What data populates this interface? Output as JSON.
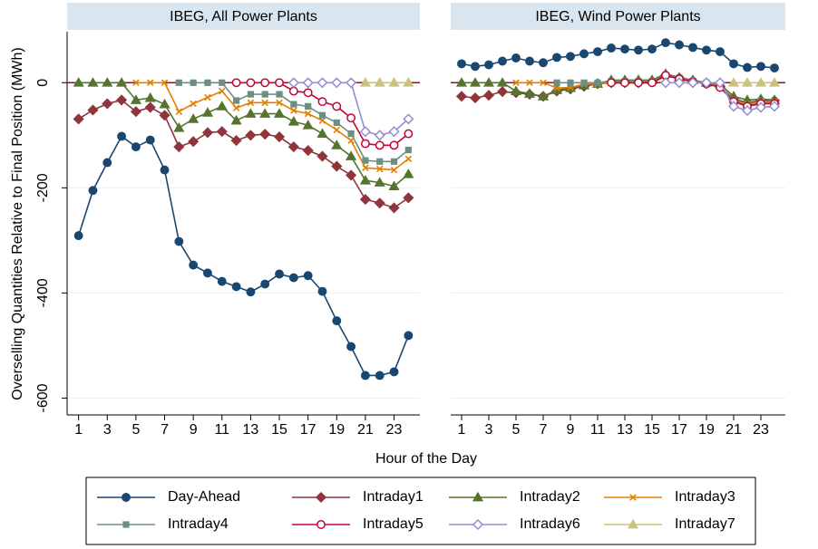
{
  "chart_data": [
    {
      "type": "line",
      "title": "IBEG, All Power Plants",
      "y_label": "Overselling Quantities Relative to Final Position (MWh)",
      "x_label": "Hour of the Day",
      "x": [
        1,
        2,
        3,
        4,
        5,
        6,
        7,
        8,
        9,
        10,
        11,
        12,
        13,
        14,
        15,
        16,
        17,
        18,
        19,
        20,
        21,
        22,
        23,
        24
      ],
      "xlim": [
        0.2,
        24.8
      ],
      "xticks": [
        1,
        3,
        5,
        7,
        9,
        11,
        13,
        15,
        17,
        19,
        21,
        23
      ],
      "ylim": [
        -632,
        97
      ],
      "yticks": [
        -600,
        -400,
        -200,
        0
      ],
      "grid": true,
      "reference_line": {
        "value": 0,
        "color": "#b0002a"
      },
      "series": [
        {
          "name": "Day-Ahead",
          "color": "#1a476f",
          "marker": "circle",
          "values": [
            -291,
            -205,
            -152,
            -102,
            -122,
            -109,
            -166,
            -302,
            -347,
            -362,
            -378,
            -388,
            -398,
            -383,
            -364,
            -371,
            -367,
            -397,
            -453,
            -502,
            -557,
            -557,
            -550,
            -481
          ]
        },
        {
          "name": "Intraday1",
          "color": "#90353b",
          "marker": "diamond",
          "values": [
            -69,
            -52,
            -40,
            -33,
            -55,
            -47,
            -62,
            -122,
            -112,
            -95,
            -93,
            -110,
            -100,
            -98,
            -103,
            -122,
            -129,
            -140,
            -159,
            -176,
            -222,
            -229,
            -238,
            -219
          ]
        },
        {
          "name": "Intraday2",
          "color": "#55752f",
          "marker": "triangle",
          "values": [
            0,
            0,
            0,
            0,
            -33,
            -29,
            -41,
            -86,
            -69,
            -57,
            -45,
            -72,
            -59,
            -59,
            -59,
            -74,
            -81,
            -97,
            -119,
            -140,
            -186,
            -190,
            -197,
            -174
          ]
        },
        {
          "name": "Intraday3",
          "color": "#e37e00",
          "marker": "x",
          "values": [
            null,
            null,
            null,
            null,
            0,
            0,
            0,
            -55,
            -40,
            -28,
            -16,
            -48,
            -38,
            -38,
            -38,
            -53,
            -59,
            -72,
            -90,
            -110,
            -162,
            -164,
            -166,
            -145
          ]
        },
        {
          "name": "Intraday4",
          "color": "#6e8e84",
          "marker": "square",
          "values": [
            null,
            null,
            null,
            null,
            null,
            null,
            null,
            0,
            0,
            0,
            0,
            -34,
            -22,
            -22,
            -22,
            -41,
            -45,
            -62,
            -76,
            -97,
            -148,
            -150,
            -150,
            -128
          ]
        },
        {
          "name": "Intraday5",
          "color": "#c10534",
          "marker": "open-circle",
          "values": [
            null,
            null,
            null,
            null,
            null,
            null,
            null,
            null,
            null,
            null,
            null,
            0,
            0,
            0,
            0,
            -16,
            -19,
            -36,
            -45,
            -67,
            -116,
            -119,
            -119,
            -97
          ]
        },
        {
          "name": "Intraday6",
          "color": "#938dd2",
          "marker": "open-diamond",
          "values": [
            null,
            null,
            null,
            null,
            null,
            null,
            null,
            null,
            null,
            null,
            null,
            null,
            null,
            null,
            null,
            0,
            0,
            0,
            0,
            0,
            -93,
            -100,
            -93,
            -69
          ]
        },
        {
          "name": "Intraday7",
          "color": "#cac27e",
          "marker": "triangle",
          "values": [
            null,
            null,
            null,
            null,
            null,
            null,
            null,
            null,
            null,
            null,
            null,
            null,
            null,
            null,
            null,
            null,
            null,
            null,
            null,
            null,
            0,
            0,
            0,
            0
          ]
        }
      ]
    },
    {
      "type": "line",
      "title": "IBEG, Wind Power Plants",
      "x": [
        1,
        2,
        3,
        4,
        5,
        6,
        7,
        8,
        9,
        10,
        11,
        12,
        13,
        14,
        15,
        16,
        17,
        18,
        19,
        20,
        21,
        22,
        23,
        24
      ],
      "xlim": [
        0.2,
        24.8
      ],
      "xticks": [
        1,
        3,
        5,
        7,
        9,
        11,
        13,
        15,
        17,
        19,
        21,
        23
      ],
      "ylim": [
        -632,
        97
      ],
      "yticks": [
        -600,
        -400,
        -200,
        0
      ],
      "grid": true,
      "reference_line": {
        "value": 0,
        "color": "#b0002a"
      },
      "series": [
        {
          "name": "Day-Ahead",
          "color": "#1a476f",
          "marker": "circle",
          "values": [
            36,
            31,
            34,
            41,
            47,
            41,
            38,
            48,
            50,
            55,
            59,
            66,
            64,
            62,
            64,
            76,
            72,
            67,
            62,
            59,
            36,
            29,
            31,
            28
          ]
        },
        {
          "name": "Intraday1",
          "color": "#90353b",
          "marker": "diamond",
          "values": [
            -26,
            -29,
            -24,
            -17,
            -19,
            -22,
            -26,
            -16,
            -12,
            -7,
            -2,
            0,
            0,
            0,
            2,
            14,
            9,
            2,
            -2,
            -7,
            -31,
            -38,
            -34,
            -34
          ]
        },
        {
          "name": "Intraday2",
          "color": "#55752f",
          "marker": "triangle",
          "values": [
            0,
            0,
            0,
            0,
            -16,
            -21,
            -26,
            -14,
            -10,
            -5,
            -2,
            5,
            5,
            5,
            5,
            17,
            10,
            5,
            0,
            -3,
            -26,
            -33,
            -31,
            -33
          ]
        },
        {
          "name": "Intraday3",
          "color": "#e37e00",
          "marker": "x",
          "values": [
            null,
            null,
            null,
            null,
            0,
            0,
            0,
            -10,
            -9,
            -3,
            -2,
            0,
            0,
            0,
            0,
            12,
            9,
            2,
            -2,
            -7,
            -33,
            -41,
            -36,
            -36
          ]
        },
        {
          "name": "Intraday4",
          "color": "#6e8e84",
          "marker": "square",
          "values": [
            null,
            null,
            null,
            null,
            null,
            null,
            null,
            0,
            0,
            0,
            0,
            3,
            3,
            3,
            3,
            14,
            9,
            3,
            0,
            -5,
            -34,
            -43,
            -38,
            -38
          ]
        },
        {
          "name": "Intraday5",
          "color": "#c10534",
          "marker": "open-circle",
          "values": [
            null,
            null,
            null,
            null,
            null,
            null,
            null,
            null,
            null,
            null,
            null,
            0,
            0,
            0,
            0,
            14,
            7,
            2,
            -2,
            -9,
            -36,
            -45,
            -40,
            -40
          ]
        },
        {
          "name": "Intraday6",
          "color": "#938dd2",
          "marker": "open-diamond",
          "values": [
            null,
            null,
            null,
            null,
            null,
            null,
            null,
            null,
            null,
            null,
            null,
            null,
            null,
            null,
            null,
            0,
            0,
            0,
            0,
            0,
            -45,
            -53,
            -47,
            -45
          ]
        },
        {
          "name": "Intraday7",
          "color": "#cac27e",
          "marker": "triangle",
          "values": [
            null,
            null,
            null,
            null,
            null,
            null,
            null,
            null,
            null,
            null,
            null,
            null,
            null,
            null,
            null,
            null,
            null,
            null,
            null,
            null,
            0,
            0,
            0,
            0
          ]
        }
      ]
    }
  ]
}
